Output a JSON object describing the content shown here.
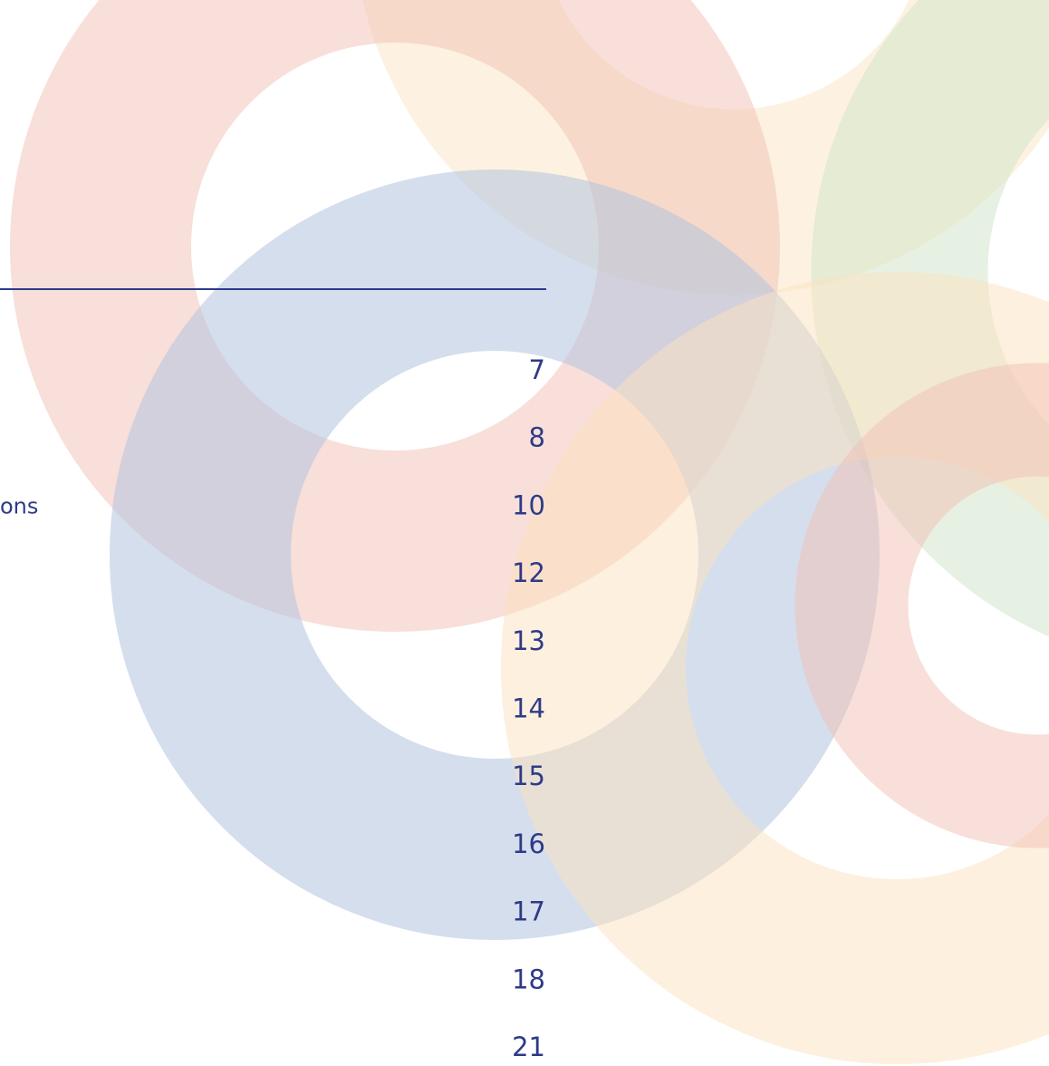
{
  "toc": {
    "entries": [
      {
        "page": 7
      },
      {
        "page": 8
      },
      {
        "label": "ons",
        "page": 10
      },
      {
        "page": 12
      },
      {
        "page": 13
      },
      {
        "page": 14
      },
      {
        "page": 15
      },
      {
        "page": 16
      },
      {
        "page": 17
      },
      {
        "page": 18
      },
      {
        "page": 21
      }
    ]
  }
}
